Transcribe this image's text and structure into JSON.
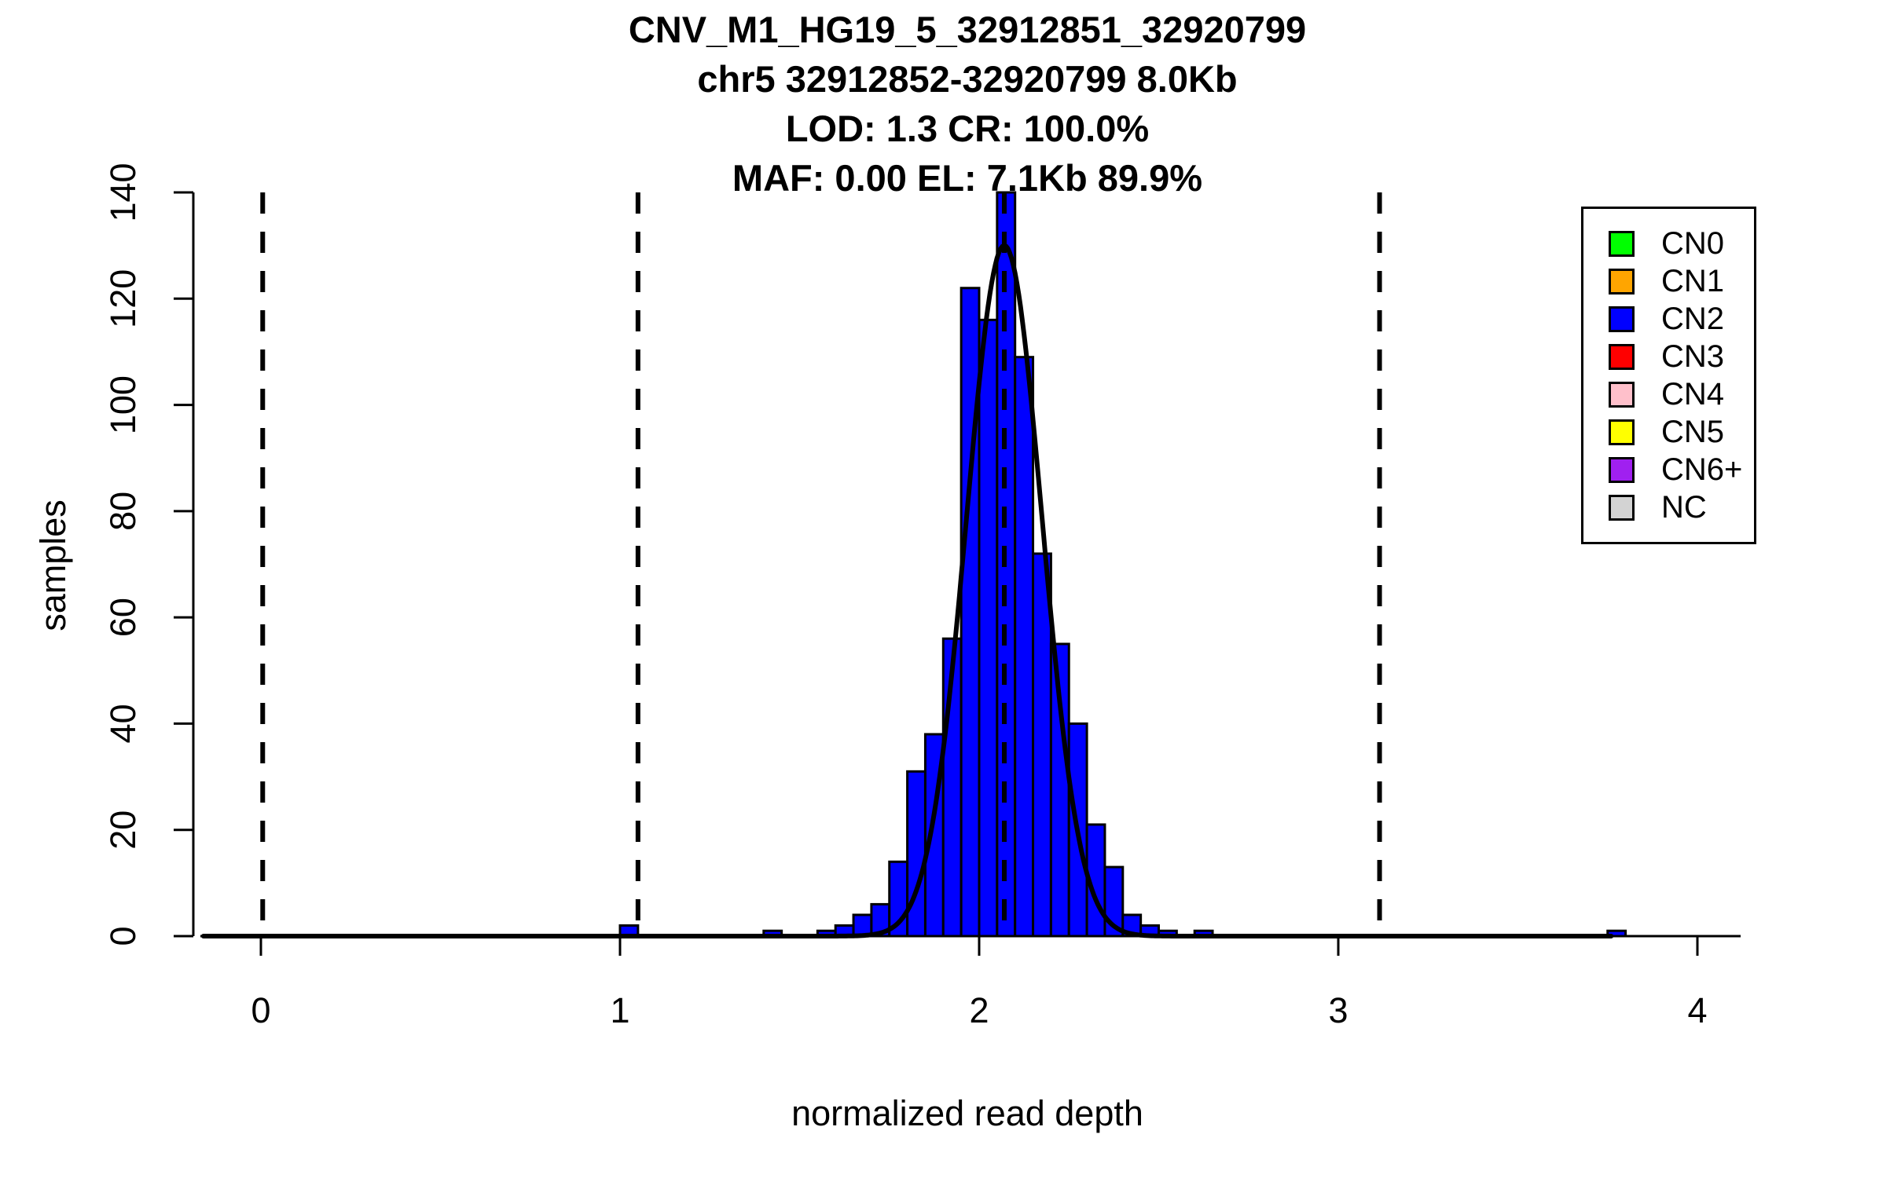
{
  "title": {
    "line1": "CNV_M1_HG19_5_32912851_32920799",
    "line2": "chr5 32912852-32920799 8.0Kb",
    "line3": "LOD: 1.3 CR: 100.0%",
    "line4": "MAF: 0.00 EL: 7.1Kb 89.9%"
  },
  "axes": {
    "x_label": "normalized read depth",
    "y_label": "samples",
    "x_ticks": [
      0,
      1,
      2,
      3,
      4
    ],
    "y_ticks": [
      0,
      20,
      40,
      60,
      80,
      100,
      120,
      140
    ]
  },
  "legend": {
    "items": [
      {
        "label": "CN0",
        "color": "#00FF00"
      },
      {
        "label": "CN1",
        "color": "#FFA500"
      },
      {
        "label": "CN2",
        "color": "#0000FF"
      },
      {
        "label": "CN3",
        "color": "#FF0000"
      },
      {
        "label": "CN4",
        "color": "#FFC0CB"
      },
      {
        "label": "CN5",
        "color": "#FFFF00"
      },
      {
        "label": "CN6+",
        "color": "#A020F0"
      },
      {
        "label": "NC",
        "color": "#D3D3D3"
      }
    ]
  },
  "chart_data": {
    "type": "bar",
    "subtype": "histogram",
    "title": "CNV_M1_HG19_5_32912851_32920799 / chr5 32912852-32920799 8.0Kb / LOD: 1.3 CR: 100.0% / MAF: 0.00 EL: 7.1Kb 89.9%",
    "xlabel": "normalized read depth",
    "ylabel": "samples",
    "xlim": [
      -0.17,
      4.13
    ],
    "ylim": [
      0,
      140
    ],
    "grid": false,
    "legend_position": "top-right",
    "bin_width": 0.05,
    "bar_color": "#0000FF",
    "bar_edge_color": "#000000",
    "bins": [
      {
        "x0": 1.0,
        "count": 2
      },
      {
        "x0": 1.4,
        "count": 1
      },
      {
        "x0": 1.55,
        "count": 1
      },
      {
        "x0": 1.6,
        "count": 2
      },
      {
        "x0": 1.65,
        "count": 4
      },
      {
        "x0": 1.7,
        "count": 6
      },
      {
        "x0": 1.75,
        "count": 14
      },
      {
        "x0": 1.8,
        "count": 31
      },
      {
        "x0": 1.85,
        "count": 38
      },
      {
        "x0": 1.9,
        "count": 56
      },
      {
        "x0": 1.95,
        "count": 122
      },
      {
        "x0": 2.0,
        "count": 116
      },
      {
        "x0": 2.05,
        "count": 140
      },
      {
        "x0": 2.1,
        "count": 109
      },
      {
        "x0": 2.15,
        "count": 72
      },
      {
        "x0": 2.2,
        "count": 55
      },
      {
        "x0": 2.25,
        "count": 40
      },
      {
        "x0": 2.3,
        "count": 21
      },
      {
        "x0": 2.35,
        "count": 13
      },
      {
        "x0": 2.4,
        "count": 4
      },
      {
        "x0": 2.45,
        "count": 2
      },
      {
        "x0": 2.5,
        "count": 1
      },
      {
        "x0": 2.6,
        "count": 1
      },
      {
        "x0": 3.75,
        "count": 1
      }
    ],
    "dashed_vlines_x": [
      0.005,
      1.05,
      2.07,
      3.115
    ],
    "fit_curve": {
      "shape": "gaussian",
      "mean": 2.07,
      "sd": 0.105,
      "peak": 130,
      "x_start": -0.16,
      "x_end": 3.76
    },
    "line_color": "#000000"
  }
}
